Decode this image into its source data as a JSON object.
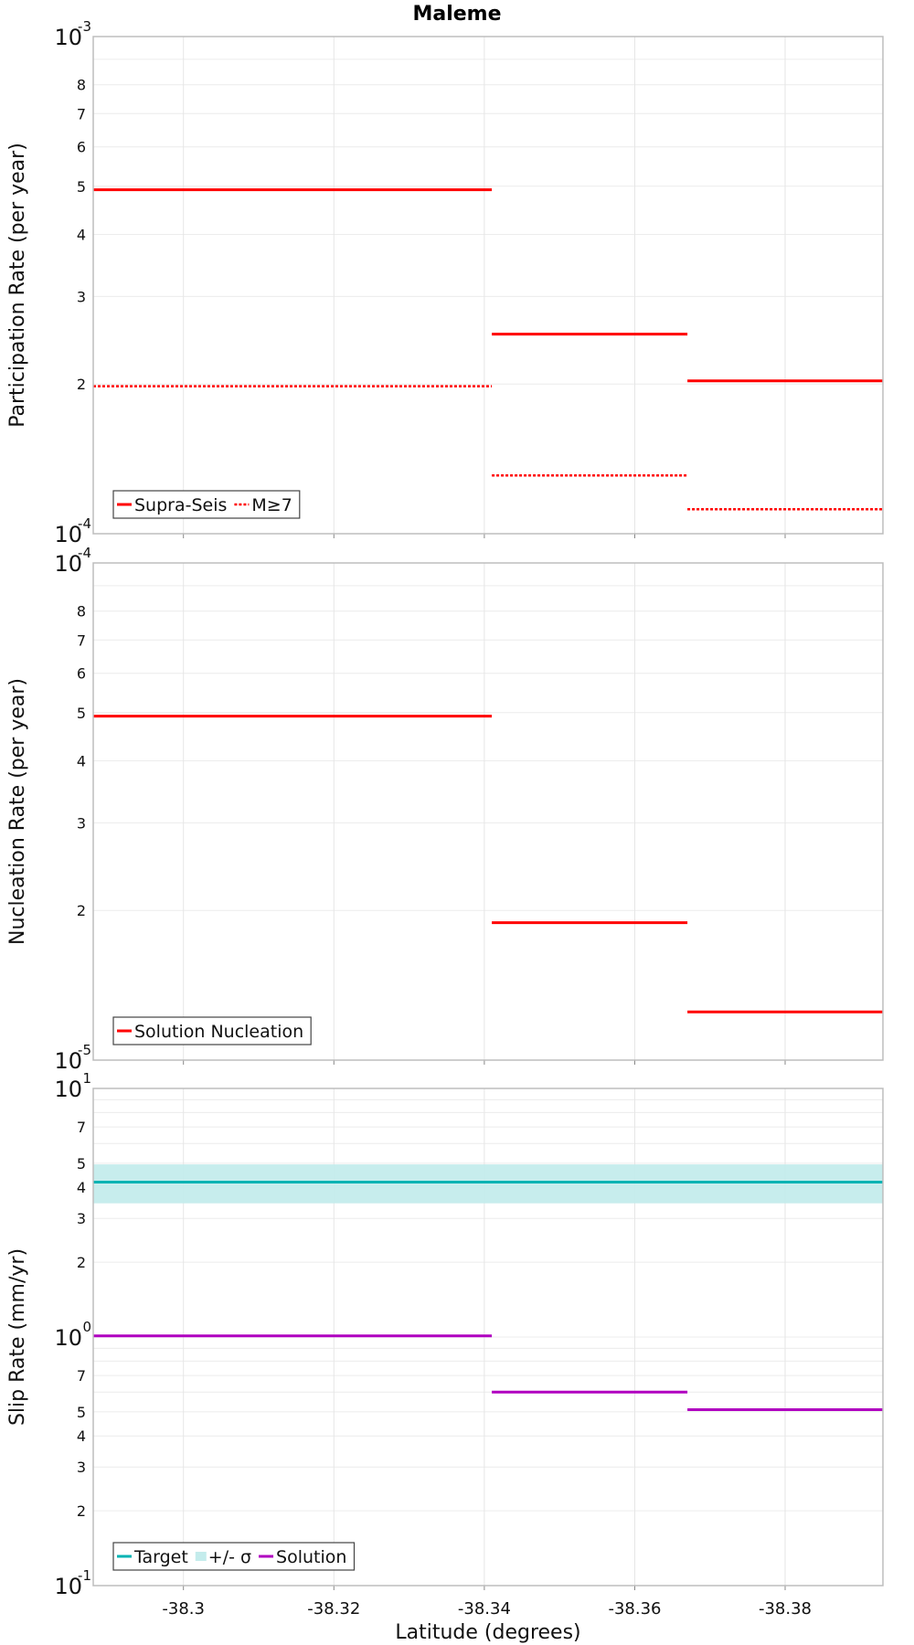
{
  "title": "Maleme",
  "chart_data": [
    {
      "type": "line",
      "title": "Maleme",
      "ylabel": "Participation Rate (per year)",
      "xlabel": "",
      "x_ticks": [
        "-38.3",
        "-38.32",
        "-38.34",
        "-38.36",
        "-38.38"
      ],
      "y_ticks": [
        {
          "value": 0.001,
          "base": "10",
          "exp": "-3"
        },
        {
          "value": 0.0008,
          "label": "8"
        },
        {
          "value": 0.0007,
          "label": "7"
        },
        {
          "value": 0.0006,
          "label": "6"
        },
        {
          "value": 0.0005,
          "label": "5"
        },
        {
          "value": 0.0004,
          "label": "4"
        },
        {
          "value": 0.0003,
          "label": "3"
        },
        {
          "value": 0.0002,
          "label": "2"
        },
        {
          "value": 0.0001,
          "base": "10",
          "exp": "-4"
        }
      ],
      "xlim": [
        -38.288,
        -38.393
      ],
      "ylim": [
        0.0001,
        0.001
      ],
      "yscale": "log",
      "grid": true,
      "legend_position": "bottom-left",
      "series": [
        {
          "name": "Supra-Seis",
          "style": "solid",
          "color": "#ff0000",
          "segments": [
            [
              -38.288,
              -38.341,
              0.000492
            ],
            [
              -38.341,
              -38.367,
              0.000252
            ],
            [
              -38.367,
              -38.393,
              0.000203
            ]
          ]
        },
        {
          "name": "M≥7",
          "style": "dotted",
          "color": "#ff0000",
          "segments": [
            [
              -38.288,
              -38.341,
              0.000198
            ],
            [
              -38.341,
              -38.367,
              0.000131
            ],
            [
              -38.367,
              -38.393,
              0.000112
            ]
          ]
        }
      ]
    },
    {
      "type": "line",
      "title": "",
      "ylabel": "Nucleation Rate (per year)",
      "xlabel": "",
      "x_ticks": [
        "-38.3",
        "-38.32",
        "-38.34",
        "-38.36",
        "-38.38"
      ],
      "y_ticks": [
        {
          "value": 0.0001,
          "base": "10",
          "exp": "-4"
        },
        {
          "value": 8e-05,
          "label": "8"
        },
        {
          "value": 7e-05,
          "label": "7"
        },
        {
          "value": 6e-05,
          "label": "6"
        },
        {
          "value": 5e-05,
          "label": "5"
        },
        {
          "value": 4e-05,
          "label": "4"
        },
        {
          "value": 3e-05,
          "label": "3"
        },
        {
          "value": 2e-05,
          "label": "2"
        },
        {
          "value": 1e-05,
          "base": "10",
          "exp": "-5"
        }
      ],
      "xlim": [
        -38.288,
        -38.393
      ],
      "ylim": [
        1e-05,
        0.0001
      ],
      "yscale": "log",
      "grid": true,
      "legend_position": "bottom-left",
      "series": [
        {
          "name": "Solution Nucleation",
          "style": "solid",
          "color": "#ff0000",
          "segments": [
            [
              -38.288,
              -38.341,
              4.92e-05
            ],
            [
              -38.341,
              -38.367,
              1.89e-05
            ],
            [
              -38.367,
              -38.393,
              1.25e-05
            ]
          ]
        }
      ]
    },
    {
      "type": "line",
      "title": "",
      "ylabel": "Slip Rate (mm/yr)",
      "xlabel": "Latitude (degrees)",
      "x_ticks": [
        "-38.3",
        "-38.32",
        "-38.34",
        "-38.36",
        "-38.38"
      ],
      "y_ticks": [
        {
          "value": 10,
          "base": "10",
          "exp": "1"
        },
        {
          "value": 7,
          "label": "7"
        },
        {
          "value": 5,
          "label": "5"
        },
        {
          "value": 4,
          "label": "4"
        },
        {
          "value": 3,
          "label": "3"
        },
        {
          "value": 2,
          "label": "2"
        },
        {
          "value": 1,
          "base": "10",
          "exp": "0"
        },
        {
          "value": 0.7,
          "label": "7"
        },
        {
          "value": 0.5,
          "label": "5"
        },
        {
          "value": 0.4,
          "label": "4"
        },
        {
          "value": 0.3,
          "label": "3"
        },
        {
          "value": 0.2,
          "label": "2"
        },
        {
          "value": 0.1,
          "base": "10",
          "exp": "-1"
        }
      ],
      "xlim": [
        -38.288,
        -38.393
      ],
      "ylim": [
        0.1,
        10
      ],
      "yscale": "log",
      "grid": true,
      "legend_position": "bottom-left",
      "series": [
        {
          "name": "Target",
          "style": "solid",
          "color": "#00b3b3",
          "segments": [
            [
              -38.288,
              -38.393,
              4.2
            ]
          ]
        },
        {
          "name": "+/- σ",
          "style": "band",
          "color": "#c4ecec",
          "band": [
            -38.288,
            -38.393,
            3.45,
            4.95
          ]
        },
        {
          "name": "Solution",
          "style": "solid",
          "color": "#b000c0",
          "segments": [
            [
              -38.288,
              -38.341,
              1.01
            ],
            [
              -38.341,
              -38.367,
              0.6
            ],
            [
              -38.367,
              -38.393,
              0.51
            ]
          ]
        }
      ]
    }
  ]
}
